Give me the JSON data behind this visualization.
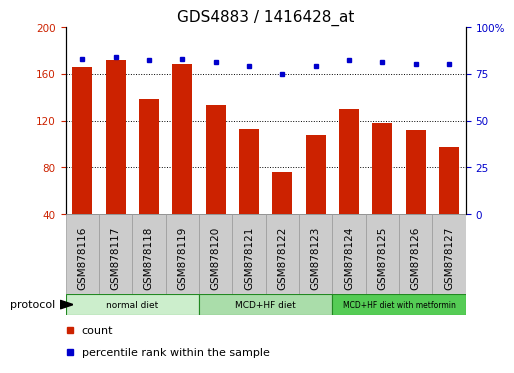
{
  "title": "GDS4883 / 1416428_at",
  "categories": [
    "GSM878116",
    "GSM878117",
    "GSM878118",
    "GSM878119",
    "GSM878120",
    "GSM878121",
    "GSM878122",
    "GSM878123",
    "GSM878124",
    "GSM878125",
    "GSM878126",
    "GSM878127"
  ],
  "bar_values": [
    166,
    172,
    138,
    168,
    133,
    113,
    76,
    108,
    130,
    118,
    112,
    97
  ],
  "dot_values": [
    83,
    84,
    82,
    83,
    81,
    79,
    75,
    79,
    82,
    81,
    80,
    80
  ],
  "bar_color": "#cc2200",
  "dot_color": "#0000cc",
  "ylim_left": [
    40,
    200
  ],
  "ylim_right": [
    0,
    100
  ],
  "yticks_left": [
    40,
    80,
    120,
    160,
    200
  ],
  "yticks_right": [
    0,
    25,
    50,
    75,
    100
  ],
  "groups": [
    {
      "label": "normal diet",
      "start": 0,
      "end": 4
    },
    {
      "label": "MCD+HF diet",
      "start": 4,
      "end": 8
    },
    {
      "label": "MCD+HF diet with metformin",
      "start": 8,
      "end": 12
    }
  ],
  "group_colors": [
    "#cceecc",
    "#aaddaa",
    "#55cc55"
  ],
  "legend_items": [
    {
      "label": "count",
      "color": "#cc2200"
    },
    {
      "label": "percentile rank within the sample",
      "color": "#0000cc"
    }
  ],
  "protocol_label": "protocol",
  "background_color": "#ffffff",
  "tick_area_color": "#cccccc",
  "title_fontsize": 11,
  "tick_fontsize": 7.5,
  "legend_fontsize": 8
}
